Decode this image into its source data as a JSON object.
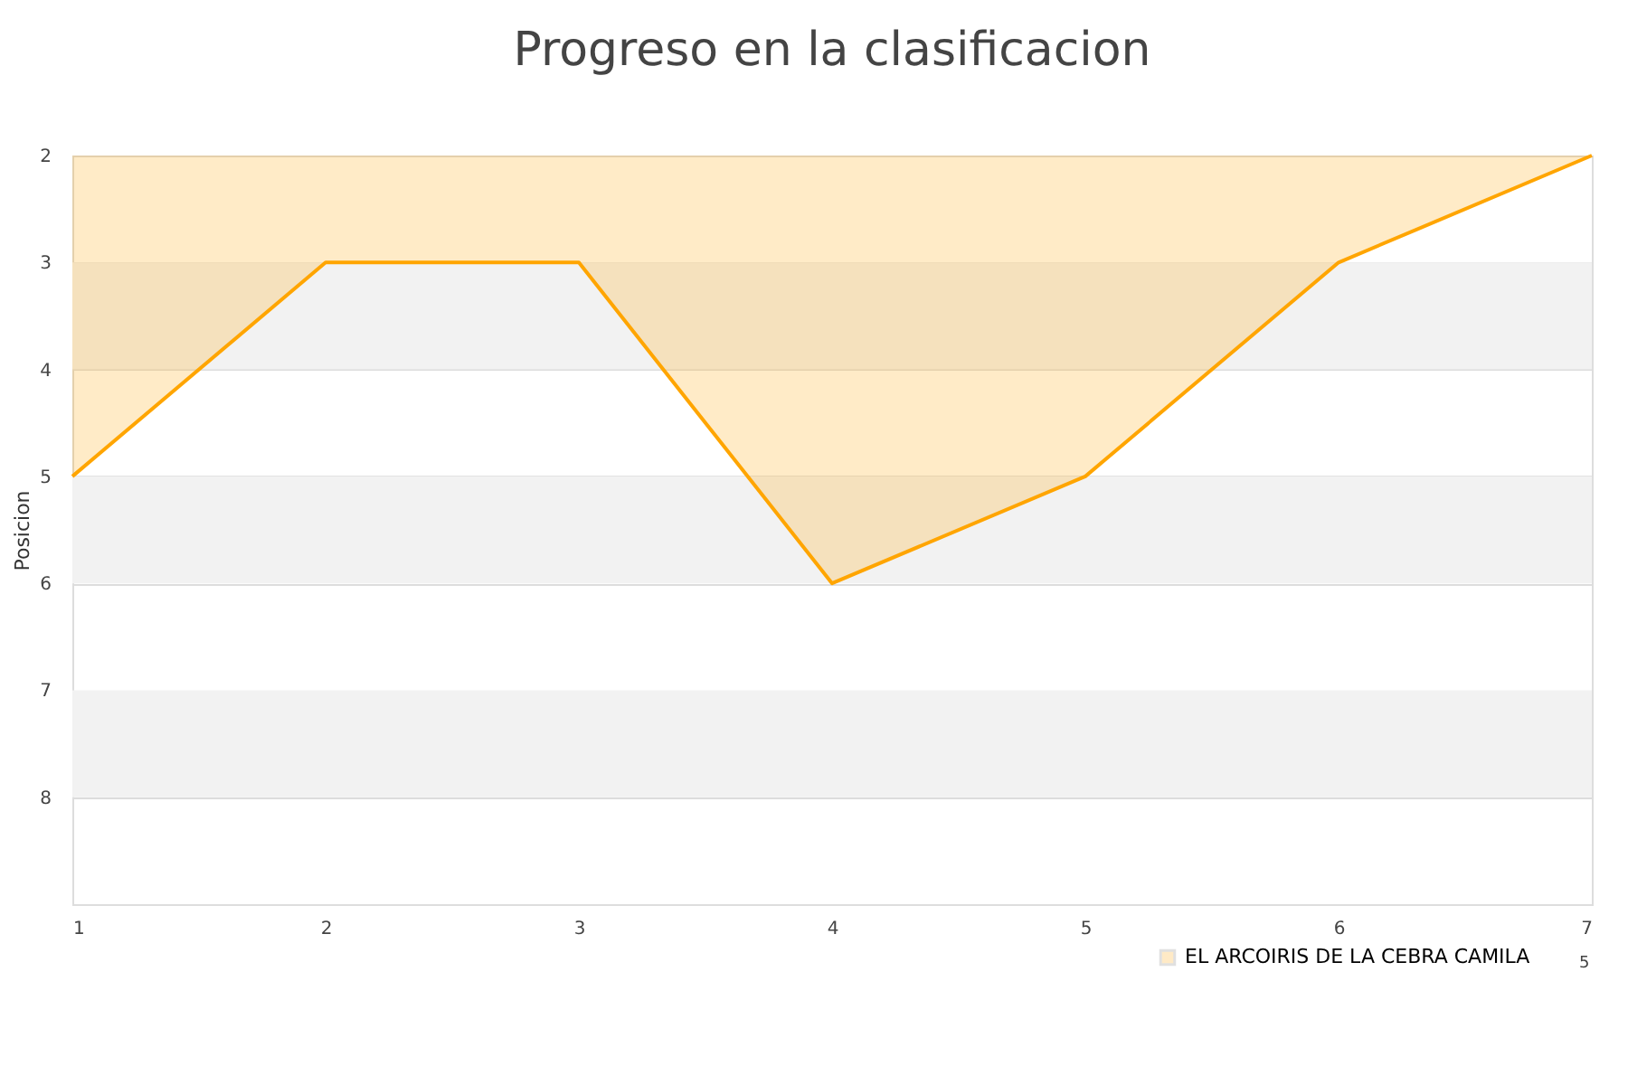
{
  "chart_data": {
    "type": "area",
    "title": "Progreso en la clasificacion",
    "ylabel": "Posicion",
    "x": [
      1,
      2,
      3,
      4,
      5,
      6,
      7
    ],
    "series": [
      {
        "name": "EL ARCOIRIS DE LA CEBRA CAMILA",
        "color": "#ffa500",
        "values": [
          5,
          3,
          3,
          6,
          5,
          3,
          2
        ]
      }
    ],
    "xlim": [
      1,
      7
    ],
    "xticks": [
      1,
      2,
      3,
      4,
      5,
      6,
      7
    ],
    "ylim": [
      9,
      2
    ],
    "yticks": [
      2,
      3,
      4,
      5,
      6,
      7,
      8
    ],
    "bands": [
      {
        "axis": "y",
        "from": 3,
        "to": 4,
        "color": "#f2f2f2"
      },
      {
        "axis": "y",
        "from": 5,
        "to": 6,
        "color": "#f2f2f2"
      },
      {
        "axis": "y",
        "from": 7,
        "to": 8,
        "color": "#f2f2f2"
      }
    ],
    "annotations": [
      "5"
    ],
    "grid": "y",
    "legend": "bottom right"
  }
}
